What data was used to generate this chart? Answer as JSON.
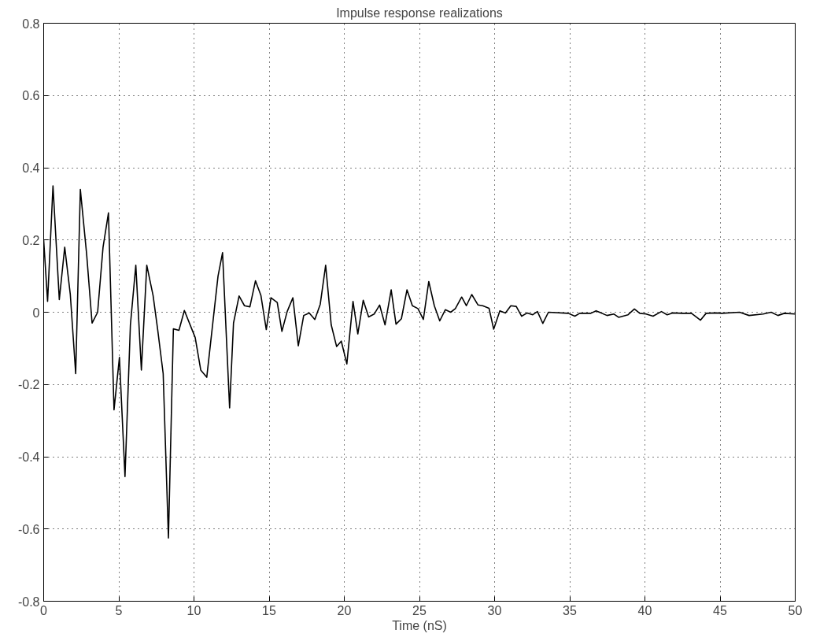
{
  "chart_data": {
    "type": "line",
    "title": "Impulse response realizations",
    "xlabel": "Time (nS)",
    "xlim": [
      0,
      50
    ],
    "ylim": [
      -0.8,
      0.8
    ],
    "xticks": [
      0,
      5,
      10,
      15,
      20,
      25,
      30,
      35,
      40,
      45,
      50
    ],
    "yticks": [
      -0.8,
      -0.6,
      -0.4,
      -0.2,
      0,
      0.2,
      0.4,
      0.6,
      0.8
    ],
    "grid": true,
    "line_style": "solid",
    "marker": "none",
    "series": [
      {
        "color": "#000000",
        "x": [
          0,
          0.26,
          0.62,
          1.04,
          1.4,
          1.77,
          2.13,
          2.44,
          2.86,
          3.22,
          3.59,
          3.95,
          4.31,
          4.68,
          5.04,
          5.41,
          5.77,
          6.13,
          6.5,
          6.86,
          7.28,
          7.59,
          7.95,
          8.3,
          8.63,
          9.0,
          9.36,
          10.08,
          10.45,
          10.85,
          11.6,
          11.9,
          12.37,
          12.63,
          13.0,
          13.36,
          13.72,
          14.09,
          14.45,
          14.81,
          15.12,
          15.54,
          15.85,
          16.2,
          16.58,
          16.94,
          17.3,
          17.67,
          18.04,
          18.4,
          18.76,
          19.13,
          19.49,
          19.8,
          20.17,
          20.58,
          20.9,
          21.26,
          21.62,
          21.99,
          22.35,
          22.71,
          23.12,
          23.44,
          23.8,
          24.17,
          24.53,
          24.9,
          25.26,
          25.62,
          25.99,
          26.35,
          26.72,
          27.08,
          27.39,
          27.81,
          28.12,
          28.48,
          28.9,
          29.21,
          29.63,
          29.94,
          30.35,
          30.72,
          31.08,
          31.44,
          31.8,
          32.17,
          32.54,
          32.85,
          33.21,
          33.58,
          34.9,
          35.34,
          35.66,
          36.4,
          36.75,
          37.48,
          37.94,
          38.25,
          38.88,
          39.3,
          39.66,
          40.08,
          40.54,
          41.1,
          41.48,
          41.84,
          42.5,
          43.1,
          43.7,
          44.07,
          44.75,
          45.1,
          46.3,
          46.93,
          47.87,
          48.4,
          48.85,
          49.27,
          50
        ],
        "values": [
          0.2,
          0.03,
          0.35,
          0.035,
          0.18,
          0.05,
          -0.17,
          0.34,
          0.16,
          -0.03,
          0.0,
          0.18,
          0.275,
          -0.27,
          -0.125,
          -0.455,
          -0.035,
          0.13,
          -0.16,
          0.13,
          0.046,
          -0.05,
          -0.17,
          -0.625,
          -0.046,
          -0.05,
          0.005,
          -0.07,
          -0.16,
          -0.18,
          0.1,
          0.165,
          -0.265,
          -0.03,
          0.045,
          0.018,
          0.015,
          0.087,
          0.047,
          -0.048,
          0.04,
          0.027,
          -0.053,
          0.002,
          0.04,
          -0.093,
          -0.009,
          -0.002,
          -0.02,
          0.022,
          0.13,
          -0.035,
          -0.095,
          -0.08,
          -0.143,
          0.03,
          -0.06,
          0.033,
          -0.013,
          -0.005,
          0.02,
          -0.035,
          0.062,
          -0.033,
          -0.018,
          0.062,
          0.018,
          0.01,
          -0.02,
          0.085,
          0.018,
          -0.024,
          0.007,
          0.0,
          0.01,
          0.042,
          0.018,
          0.049,
          0.02,
          0.018,
          0.011,
          -0.047,
          0.004,
          -0.002,
          0.018,
          0.016,
          -0.011,
          -0.002,
          -0.007,
          0.002,
          -0.031,
          0.0,
          -0.003,
          -0.011,
          -0.003,
          -0.003,
          0.004,
          -0.009,
          -0.005,
          -0.014,
          -0.007,
          0.009,
          -0.003,
          -0.005,
          -0.011,
          0.002,
          -0.007,
          -0.002,
          -0.003,
          -0.003,
          -0.022,
          -0.003,
          -0.002,
          -0.003,
          0.0,
          -0.009,
          -0.005,
          0.0,
          -0.009,
          -0.003,
          -0.005
        ]
      }
    ]
  }
}
